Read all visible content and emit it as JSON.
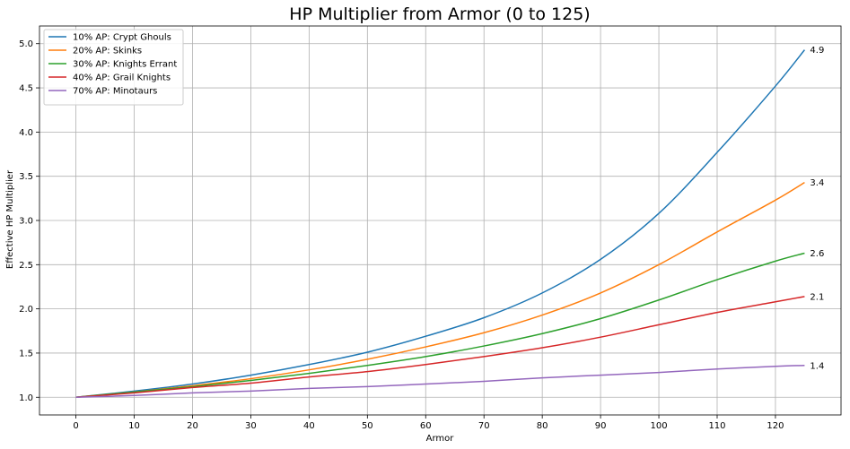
{
  "chart_data": {
    "type": "line",
    "title": "HP Multiplier from Armor (0 to 125)",
    "xlabel": "Armor",
    "ylabel": "Effective HP Multiplier",
    "xlim": [
      -6.25,
      131.25
    ],
    "ylim": [
      0.8,
      5.2
    ],
    "xticks": [
      0,
      10,
      20,
      30,
      40,
      50,
      60,
      70,
      80,
      90,
      100,
      110,
      120
    ],
    "xtick_labels": [
      "0",
      "10",
      "20",
      "30",
      "40",
      "50",
      "60",
      "70",
      "80",
      "90",
      "100",
      "110",
      "120"
    ],
    "yticks": [
      1.0,
      1.5,
      2.0,
      2.5,
      3.0,
      3.5,
      4.0,
      4.5,
      5.0
    ],
    "ytick_labels": [
      "1.0",
      "1.5",
      "2.0",
      "2.5",
      "3.0",
      "3.5",
      "4.0",
      "4.5",
      "5.0"
    ],
    "grid": true,
    "legend_position": "top-left",
    "x": [
      0,
      10,
      20,
      30,
      40,
      50,
      60,
      70,
      80,
      90,
      100,
      110,
      120,
      125
    ],
    "series": [
      {
        "name": "10% AP: Crypt Ghouls",
        "color": "#1f77b4",
        "values": [
          1.0,
          1.07,
          1.15,
          1.25,
          1.37,
          1.51,
          1.69,
          1.9,
          2.18,
          2.56,
          3.08,
          3.77,
          4.52,
          4.93
        ],
        "end_label": "4.9"
      },
      {
        "name": "20% AP: Skinks",
        "color": "#ff7f0e",
        "values": [
          1.0,
          1.06,
          1.13,
          1.21,
          1.31,
          1.43,
          1.57,
          1.73,
          1.93,
          2.18,
          2.5,
          2.87,
          3.23,
          3.43
        ],
        "end_label": "3.4"
      },
      {
        "name": "30% AP: Knights Errant",
        "color": "#2ca02c",
        "values": [
          1.0,
          1.06,
          1.12,
          1.19,
          1.27,
          1.36,
          1.46,
          1.58,
          1.72,
          1.89,
          2.1,
          2.33,
          2.54,
          2.63
        ],
        "end_label": "2.6"
      },
      {
        "name": "40% AP: Grail Knights",
        "color": "#d62728",
        "values": [
          1.0,
          1.05,
          1.11,
          1.16,
          1.23,
          1.29,
          1.37,
          1.46,
          1.56,
          1.68,
          1.82,
          1.96,
          2.08,
          2.14
        ],
        "end_label": "2.1"
      },
      {
        "name": "70% AP: Minotaurs",
        "color": "#9467bd",
        "values": [
          1.0,
          1.02,
          1.05,
          1.07,
          1.1,
          1.12,
          1.15,
          1.18,
          1.22,
          1.25,
          1.28,
          1.32,
          1.35,
          1.36
        ],
        "end_label": "1.4"
      }
    ]
  }
}
